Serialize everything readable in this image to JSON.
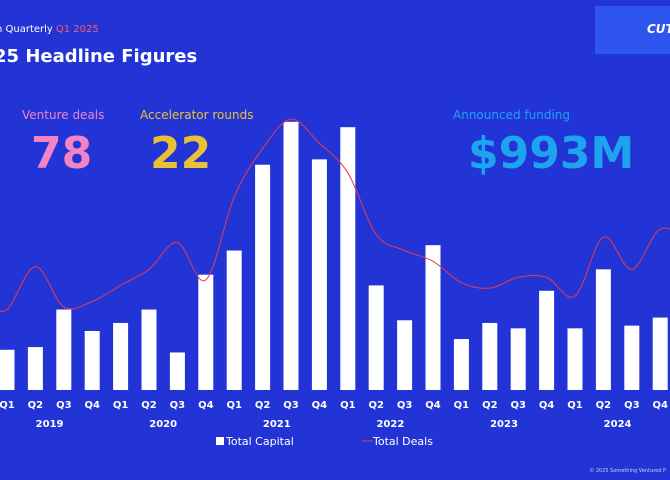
{
  "header": {
    "kicker": "h Quarterly",
    "kicker_quarter": "Q1 2025",
    "title": "25 Headline Figures",
    "logo_text": "CUT"
  },
  "stats": [
    {
      "label": "Venture deals",
      "value": "78",
      "color": "#f184c4"
    },
    {
      "label": "Accelerator rounds",
      "value": "22",
      "color": "#e8c234"
    },
    {
      "label": "Announced funding",
      "value": "$993M",
      "color": "#1ea3ee"
    }
  ],
  "colors": {
    "background": "#2334d6",
    "bars": "#ffffff",
    "line": "#e83a4a",
    "kicker_accent": "#ff5a6a",
    "logo_box": "#2f55f0"
  },
  "chart_data": {
    "type": "bar",
    "categories": [
      "Q1",
      "Q2",
      "Q3",
      "Q4",
      "Q1",
      "Q2",
      "Q3",
      "Q4",
      "Q1",
      "Q2",
      "Q3",
      "Q4",
      "Q1",
      "Q2",
      "Q3",
      "Q4",
      "Q1",
      "Q2",
      "Q3",
      "Q4",
      "Q1",
      "Q2",
      "Q3",
      "Q4"
    ],
    "years": [
      "2019",
      "2020",
      "2021",
      "2022",
      "2023",
      "2024"
    ],
    "series": [
      {
        "name": "Total Capital",
        "type": "bar",
        "values": [
          15,
          16,
          30,
          22,
          25,
          30,
          14,
          43,
          52,
          84,
          100,
          86,
          98,
          39,
          26,
          54,
          19,
          25,
          23,
          37,
          23,
          45,
          24,
          27
        ]
      },
      {
        "name": "Total Deals",
        "type": "line",
        "values": [
          30,
          46,
          31,
          33,
          39,
          45,
          55,
          41,
          72,
          90,
          101,
          92,
          81,
          58,
          52,
          48,
          40,
          38,
          42,
          42,
          35,
          57,
          45,
          60
        ]
      }
    ],
    "ylim": [
      0,
      110
    ],
    "legend_position": "bottom",
    "grid": false
  },
  "footer": "© 2025 Something Ventured P"
}
